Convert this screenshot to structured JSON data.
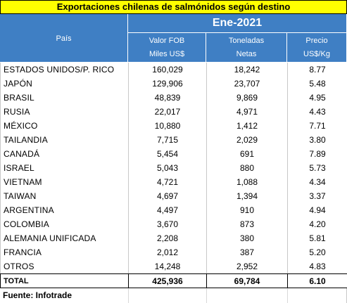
{
  "title": "Exportaciones chilenas de salmónidos según destino",
  "header": {
    "country_label": "País",
    "period": "Ene-2021",
    "col1": [
      "Valor FOB",
      "Miles US$"
    ],
    "col2": [
      "Toneladas",
      "Netas"
    ],
    "col3": [
      "Precio",
      "US$/Kg"
    ]
  },
  "rows": [
    {
      "country": "ESTADOS UNIDOS/P. RICO",
      "value": "160,029",
      "tons": "18,242",
      "price": "8.77"
    },
    {
      "country": "JAPÓN",
      "value": "129,906",
      "tons": "23,707",
      "price": "5.48"
    },
    {
      "country": "BRASIL",
      "value": "48,839",
      "tons": "9,869",
      "price": "4.95"
    },
    {
      "country": "RUSIA",
      "value": "22,017",
      "tons": "4,971",
      "price": "4.43"
    },
    {
      "country": "MÉXICO",
      "value": "10,880",
      "tons": "1,412",
      "price": "7.71"
    },
    {
      "country": "TAILANDIA",
      "value": "7,715",
      "tons": "2,029",
      "price": "3.80"
    },
    {
      "country": "CANADÁ",
      "value": "5,454",
      "tons": "691",
      "price": "7.89"
    },
    {
      "country": "ISRAEL",
      "value": "5,043",
      "tons": "880",
      "price": "5.73"
    },
    {
      "country": "VIETNAM",
      "value": "4,721",
      "tons": "1,088",
      "price": "4.34"
    },
    {
      "country": "TAIWAN",
      "value": "4,697",
      "tons": "1,394",
      "price": "3.37"
    },
    {
      "country": "ARGENTINA",
      "value": "4,497",
      "tons": "910",
      "price": "4.94"
    },
    {
      "country": "COLOMBIA",
      "value": "3,670",
      "tons": "873",
      "price": "4.20"
    },
    {
      "country": "ALEMANIA UNIFICADA",
      "value": "2,208",
      "tons": "380",
      "price": "5.81"
    },
    {
      "country": "FRANCIA",
      "value": "2,012",
      "tons": "387",
      "price": "5.20"
    },
    {
      "country": "OTROS",
      "value": "14,248",
      "tons": "2,952",
      "price": "4.83"
    }
  ],
  "total": {
    "label": "TOTAL",
    "value": "425,936",
    "tons": "69,784",
    "price": "6.10"
  },
  "source": "Fuente: Infotrade",
  "colors": {
    "title_bg": "#ffff00",
    "header_bg": "#3f7fc4",
    "header_text": "#ffffff"
  }
}
